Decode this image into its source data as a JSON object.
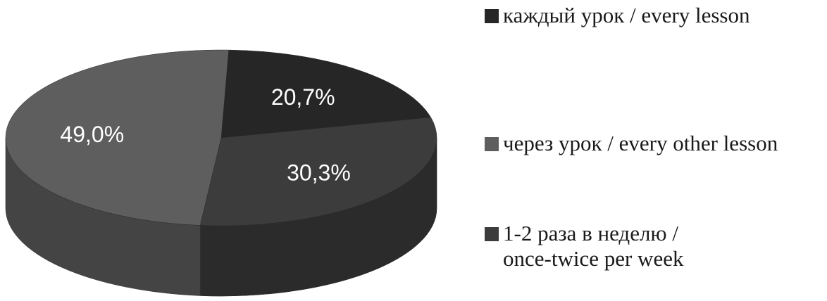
{
  "chart_data": {
    "type": "pie",
    "title": "",
    "slices": [
      {
        "name": "каждый урок / every lesson",
        "value": 20.7,
        "label": "20,7%",
        "color": "#262626"
      },
      {
        "name": "1-2 раза в неделю / once-twice per week",
        "value": 30.3,
        "label": "30,3%",
        "color": "#3c3c3c"
      },
      {
        "name": "через урок / every other lesson",
        "value": 49.0,
        "label": "49,0%",
        "color": "#5e5e5e"
      }
    ],
    "legend": {
      "placement": "right",
      "entries": [
        {
          "text": "каждый урок / every lesson",
          "color": "#262626"
        },
        {
          "text": "через урок / every other lesson",
          "color": "#5e5e5e"
        },
        {
          "text": "1-2 раза в неделю /\nonce-twice per week",
          "color": "#3c3c3c"
        }
      ]
    },
    "style": "3d"
  }
}
